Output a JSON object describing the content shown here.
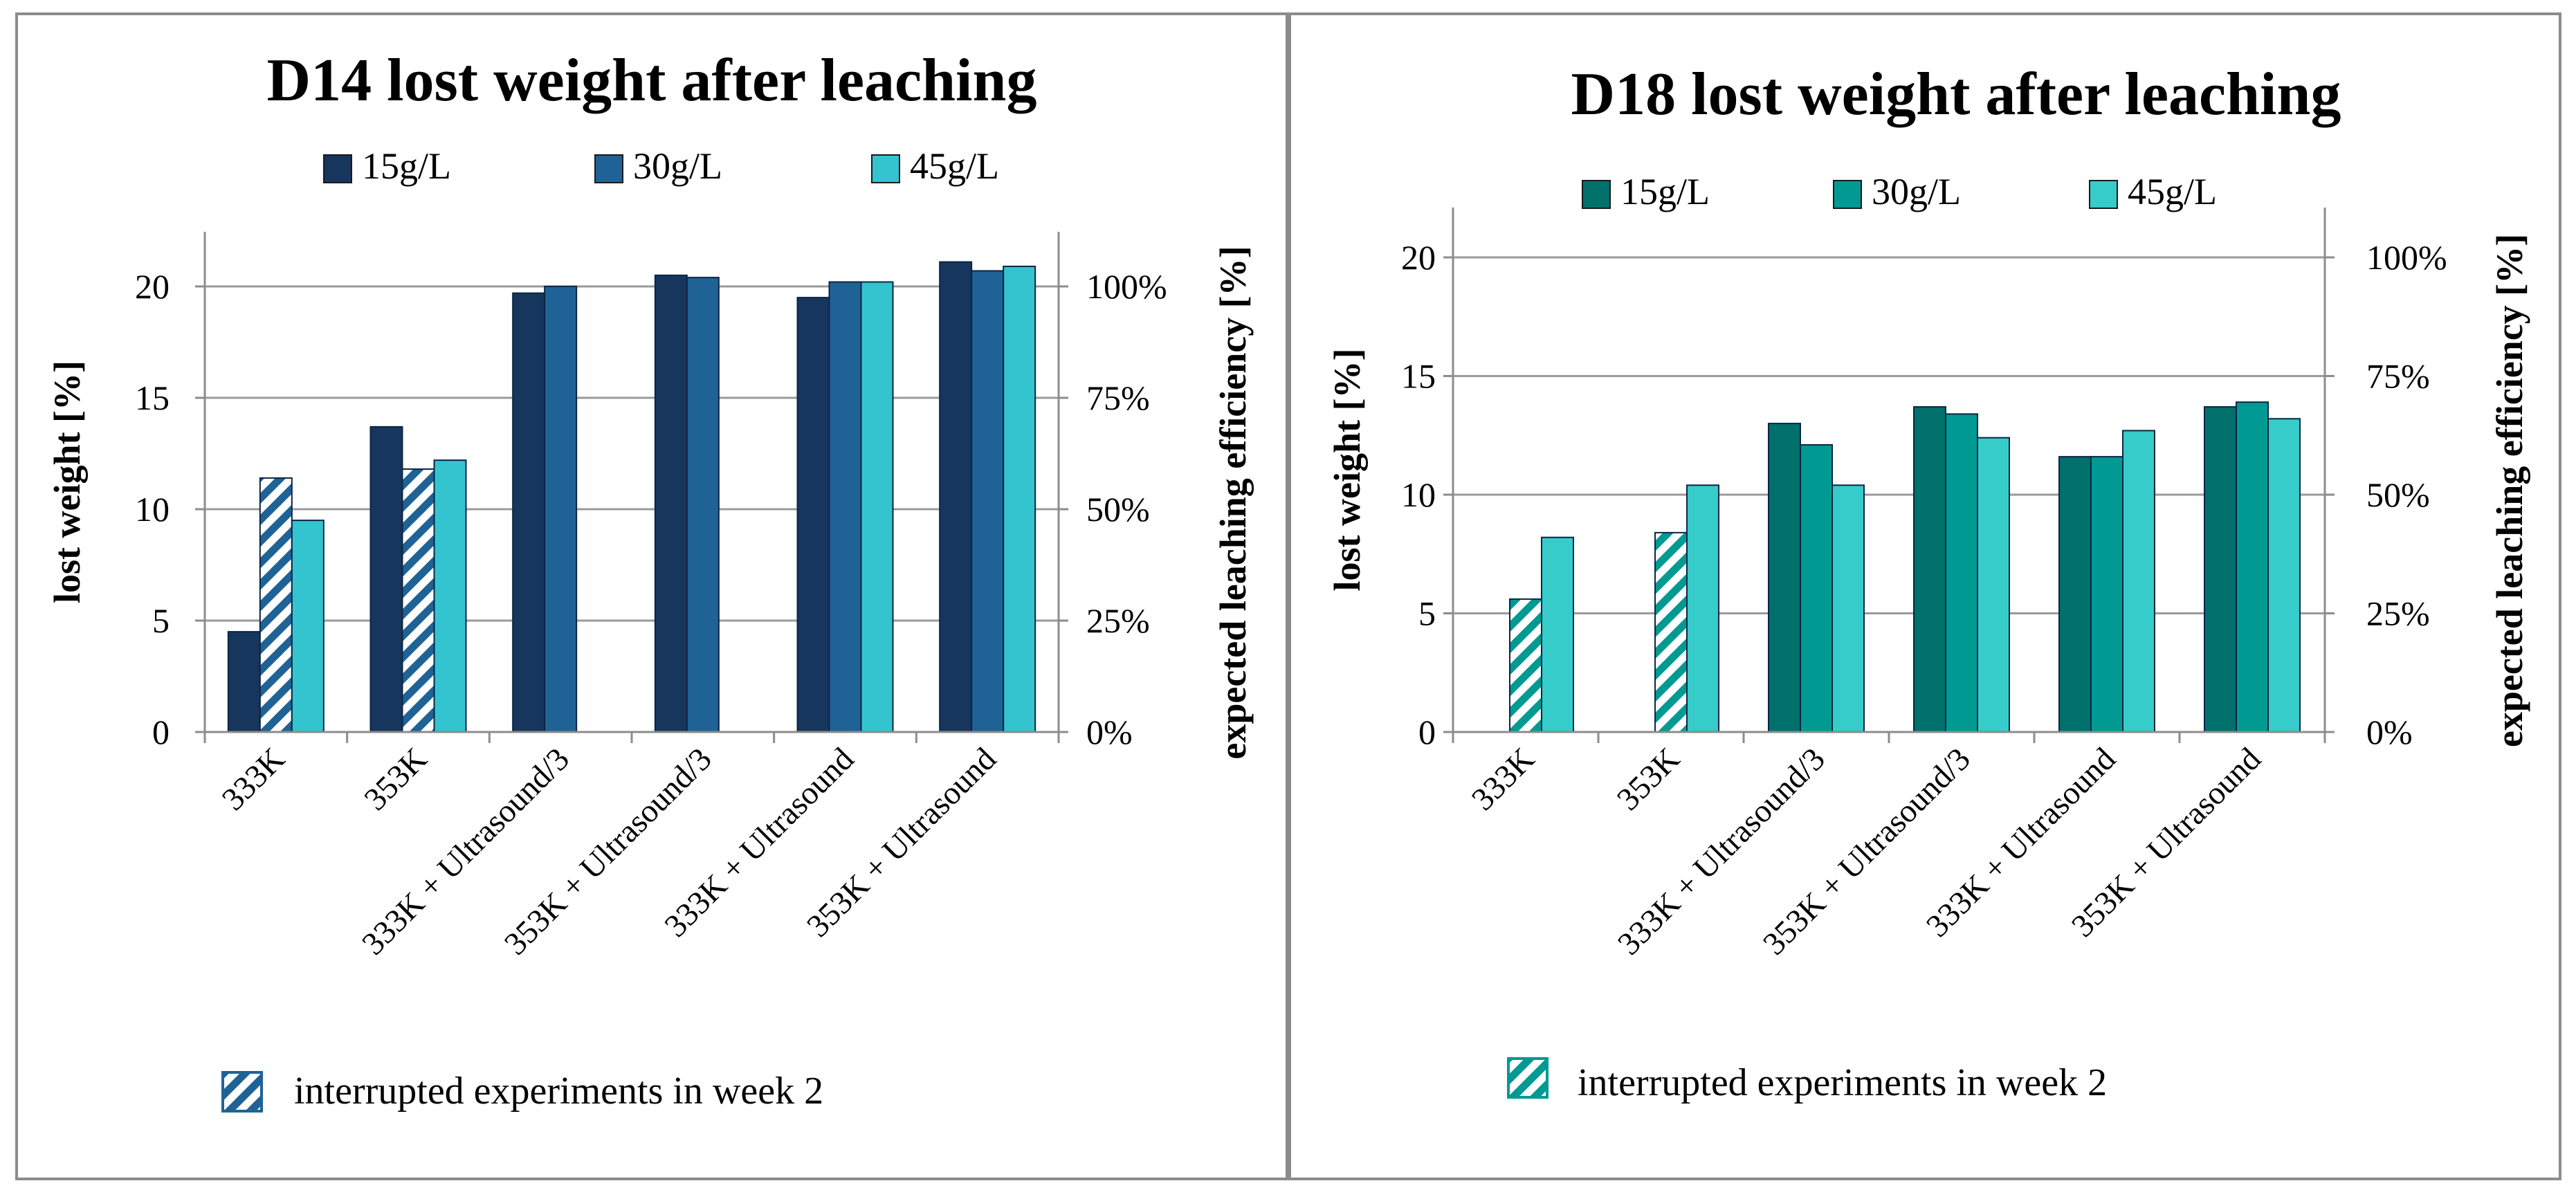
{
  "chart_data": [
    {
      "type": "bar",
      "title": "D14 lost weight after leaching",
      "categories": [
        "333K",
        "353K",
        "333K + Ultrasound/3",
        "353K + Ultrasound/3",
        "333K + Ultrasound",
        "353K + Ultrasound"
      ],
      "series": [
        {
          "name": "15g/L",
          "color": "#17365d",
          "values": [
            4.5,
            13.7,
            19.7,
            20.5,
            19.5,
            21.1
          ],
          "interrupted": [
            false,
            false,
            false,
            false,
            false,
            false
          ]
        },
        {
          "name": "30g/L",
          "color": "#1f6396",
          "values": [
            11.4,
            11.8,
            20.0,
            20.4,
            20.2,
            20.7
          ],
          "interrupted": [
            true,
            true,
            false,
            false,
            false,
            false
          ]
        },
        {
          "name": "45g/L",
          "color": "#33c4cf",
          "values": [
            9.5,
            12.2,
            null,
            null,
            20.2,
            20.9
          ],
          "interrupted": [
            false,
            false,
            false,
            false,
            false,
            false
          ]
        }
      ],
      "ylabel": "lost weight [%]",
      "ylim": [
        0,
        22.5
      ],
      "yticks": [
        "0",
        "5",
        "10",
        "15",
        "20"
      ],
      "y2label": "expected leaching efficiency [%]",
      "y2ticks": [
        "0%",
        "25%",
        "50%",
        "75%",
        "100%"
      ],
      "y2_full_scale": 20,
      "hatch_color": "#1f6396",
      "legend_position": "top",
      "grid": true,
      "annotation": "interrupted experiments in week 2"
    },
    {
      "type": "bar",
      "title": "D18 lost weight after leaching",
      "categories": [
        "333K",
        "353K",
        "333K + Ultrasound/3",
        "353K + Ultrasound/3",
        "333K + Ultrasound",
        "353K + Ultrasound"
      ],
      "series": [
        {
          "name": "15g/L",
          "color": "#00706b",
          "values": [
            null,
            null,
            13.0,
            13.7,
            11.6,
            13.7
          ],
          "interrupted": [
            false,
            false,
            false,
            false,
            false,
            false
          ]
        },
        {
          "name": "30g/L",
          "color": "#009a93",
          "values": [
            5.6,
            8.4,
            12.1,
            13.4,
            11.6,
            13.9
          ],
          "interrupted": [
            true,
            true,
            false,
            false,
            false,
            false
          ]
        },
        {
          "name": "45g/L",
          "color": "#35ccc9",
          "values": [
            8.2,
            10.4,
            10.4,
            12.4,
            12.7,
            13.2
          ],
          "interrupted": [
            false,
            false,
            false,
            false,
            false,
            false
          ]
        }
      ],
      "ylabel": "lost weight [%]",
      "ylim": [
        0,
        22
      ],
      "yticks": [
        "0",
        "5",
        "10",
        "15",
        "20"
      ],
      "y2label": "expected leaching efficiency [%]",
      "y2ticks": [
        "0%",
        "25%",
        "50%",
        "75%",
        "100%"
      ],
      "y2_full_scale": 20,
      "hatch_color": "#009a93",
      "legend_position": "top",
      "grid": true,
      "annotation": "interrupted experiments in week 2"
    }
  ]
}
